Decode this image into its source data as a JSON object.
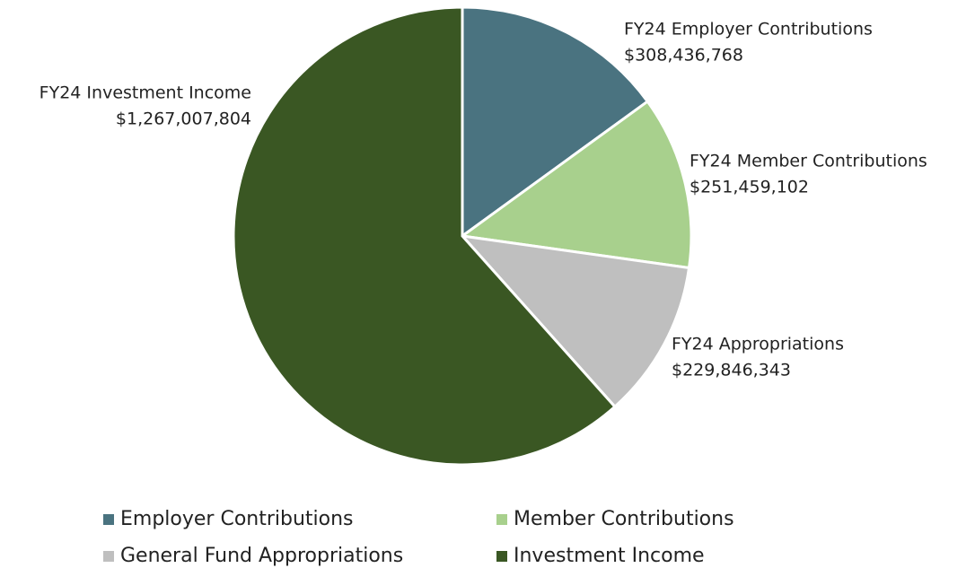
{
  "chart_data": {
    "type": "pie",
    "categories": [
      "Employer Contributions",
      "Member Contributions",
      "General Fund Appropriations",
      "Investment Income"
    ],
    "slice_labels": [
      "FY24 Employer Contributions",
      "FY24 Member Contributions",
      "FY24 Appropriations",
      "FY24 Investment Income"
    ],
    "values": [
      308436768,
      251459102,
      229846343,
      1267007804
    ],
    "value_labels": [
      "$308,436,768",
      "$251,459,102",
      "$229,846,343",
      "$1,267,007,804"
    ],
    "colors": [
      "#4a7380",
      "#a8d08d",
      "#bfbfbf",
      "#3a5723"
    ],
    "legend": "bottom"
  }
}
